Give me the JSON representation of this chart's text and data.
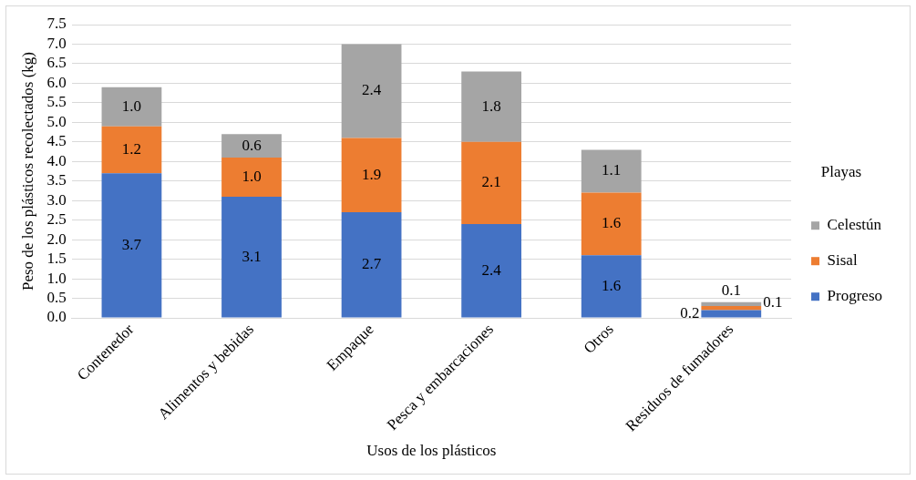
{
  "chart_data": {
    "type": "bar",
    "stacked": true,
    "xlabel": "Usos de los plásticos",
    "ylabel": "Peso de los plásticos recolectados (kg)",
    "legend_title": "Playas",
    "legend": "right",
    "grid": "y",
    "categories": [
      "Contenedor",
      "Alimentos y bebidas",
      "Empaque",
      "Pesca y embarcaciones",
      "Otros",
      "Residuos de fumadores"
    ],
    "series": [
      {
        "name": "Progreso",
        "color": "#4472c4",
        "values": [
          3.7,
          3.1,
          2.7,
          2.4,
          1.6,
          0.2
        ],
        "value_labels": [
          "3.7",
          "3.1",
          "2.7",
          "2.4",
          "1.6",
          "0.2"
        ]
      },
      {
        "name": "Sisal",
        "color": "#ed7d31",
        "values": [
          1.2,
          1.0,
          1.9,
          2.1,
          1.6,
          0.1
        ],
        "value_labels": [
          "1.2",
          "1.0",
          "1.9",
          "2.1",
          "1.6",
          "0.1"
        ]
      },
      {
        "name": "Celestún",
        "color": "#a5a5a5",
        "values": [
          1.0,
          0.6,
          2.4,
          1.8,
          1.1,
          0.1
        ],
        "value_labels": [
          "1.0",
          "0.6",
          "2.4",
          "1.8",
          "1.1",
          "0.1"
        ]
      }
    ],
    "ylim": [
      0,
      7.5
    ],
    "yticks": [
      {
        "value": 0,
        "label": "0.0"
      },
      {
        "value": 0.5,
        "label": "0.5"
      },
      {
        "value": 1,
        "label": "1.0"
      },
      {
        "value": 1.5,
        "label": "1.5"
      },
      {
        "value": 2,
        "label": "2.0"
      },
      {
        "value": 2.5,
        "label": "2.5"
      },
      {
        "value": 3,
        "label": "3.0"
      },
      {
        "value": 3.5,
        "label": "3.5"
      },
      {
        "value": 4,
        "label": "4.0"
      },
      {
        "value": 4.5,
        "label": "4.5"
      },
      {
        "value": 5,
        "label": "5.0"
      },
      {
        "value": 5.5,
        "label": "5.5"
      },
      {
        "value": 6,
        "label": "6.0"
      },
      {
        "value": 6.5,
        "label": "6.5"
      },
      {
        "value": 7,
        "label": "7.0"
      },
      {
        "value": 7.5,
        "label": "7.5"
      }
    ]
  }
}
